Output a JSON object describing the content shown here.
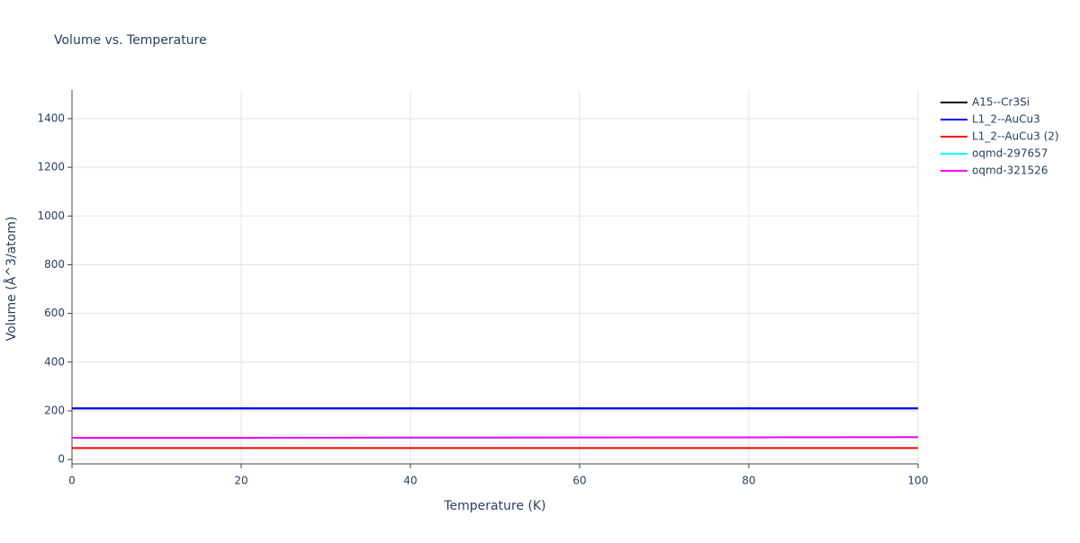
{
  "chart_data": {
    "type": "line",
    "title": "Volume vs. Temperature",
    "x_label": "Temperature (K)",
    "y_label": "Volume (Å^3/atom)",
    "x": [
      0,
      10,
      20,
      30,
      40,
      50,
      60,
      70,
      80,
      90,
      100
    ],
    "series": [
      {
        "name": "A15--Cr3Si",
        "color": "#000000",
        "values": [
          210,
          210,
          210,
          210,
          210,
          210,
          210,
          210,
          210,
          210,
          210
        ]
      },
      {
        "name": "L1_2--AuCu3",
        "color": "#0000ff",
        "values": [
          210,
          210,
          210,
          210,
          210,
          210,
          210,
          210,
          210,
          210,
          210
        ]
      },
      {
        "name": "L1_2--AuCu3 (2)",
        "color": "#ff0000",
        "values": [
          47,
          47,
          47,
          47,
          47,
          47,
          47,
          47,
          47,
          47,
          47
        ]
      },
      {
        "name": "oqmd-297657",
        "color": "#00ffff",
        "values": [
          89,
          89,
          89,
          89.5,
          90,
          90,
          90.5,
          91,
          91,
          91.5,
          92
        ]
      },
      {
        "name": "oqmd-321526",
        "color": "#ff00ff",
        "values": [
          89,
          89,
          89,
          89.5,
          90,
          90,
          90.5,
          91,
          91,
          91.5,
          92
        ]
      }
    ],
    "xlim": [
      0,
      100
    ],
    "xticks": [
      0,
      20,
      40,
      60,
      80,
      100
    ],
    "ylim": [
      -18,
      1518
    ],
    "yticks": [
      0,
      200,
      400,
      600,
      800,
      1000,
      1200,
      1400
    ],
    "grid": true,
    "legend": "right"
  }
}
